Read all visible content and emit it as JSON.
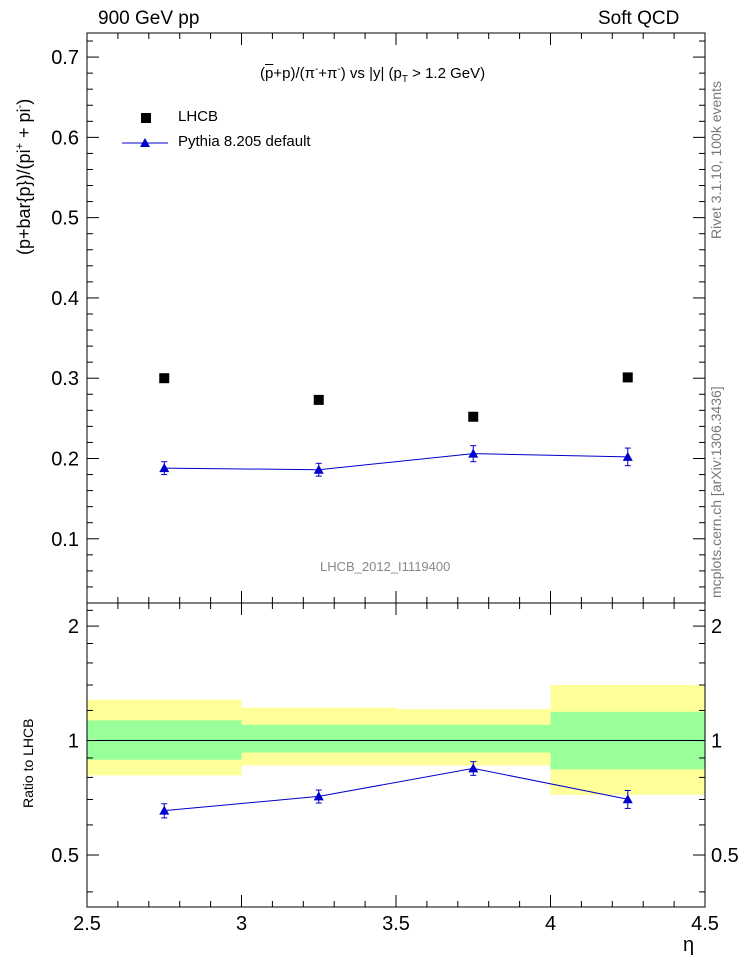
{
  "header": {
    "left": "900 GeV pp",
    "right": "Soft QCD"
  },
  "side_labels": {
    "rivet": "Rivet 3.1.10,  100k events",
    "mcplots": "mcplots.cern.ch [arXiv:1306.3436]"
  },
  "chart_data": {
    "type": "scatter",
    "title_parts": {
      "open": "(",
      "pbar": "p",
      "mid1": "+p)/(π",
      "sup1": "-",
      "mid2": "+π",
      "sup2": "-",
      "mid3": ") vs |y| (p",
      "sub": "T",
      "tail": " > 1.2 GeV)"
    },
    "ylabel_parts": {
      "a": "(p+bar{p})/(pi",
      "sup1": "+",
      "b": " + pi",
      "sup2": "-",
      "c": ")"
    },
    "ratio_ylabel": "Ratio to LHCB",
    "xlabel": "η",
    "analysis_id": "LHCB_2012_I1119400",
    "xlim": [
      2.5,
      4.5
    ],
    "ylim": [
      0.02,
      0.73
    ],
    "ratio_ylim": [
      0.365,
      2.3
    ],
    "x_ticks": [
      "2.5",
      "3",
      "3.5",
      "4",
      "4.5"
    ],
    "y_ticks": [
      "0.1",
      "0.2",
      "0.3",
      "0.4",
      "0.5",
      "0.6",
      "0.7"
    ],
    "ratio_ticks": [
      "0.5",
      "1",
      "2"
    ],
    "series": [
      {
        "name": "LHCB",
        "marker": "square",
        "color": "#000000",
        "x": [
          2.75,
          3.25,
          3.75,
          4.25
        ],
        "y": [
          0.3,
          0.273,
          0.252,
          0.301
        ]
      },
      {
        "name": "Pythia 8.205 default",
        "marker": "triangle",
        "color": "#0000cc",
        "x": [
          2.75,
          3.25,
          3.75,
          4.25
        ],
        "y": [
          0.188,
          0.186,
          0.206,
          0.202
        ],
        "yerr": [
          0.008,
          0.008,
          0.01,
          0.011
        ]
      }
    ],
    "ratio": {
      "bins": [
        [
          2.5,
          3.0
        ],
        [
          3.0,
          3.5
        ],
        [
          3.5,
          4.0
        ],
        [
          4.0,
          4.5
        ]
      ],
      "stat_band": [
        [
          0.89,
          1.13
        ],
        [
          0.93,
          1.1
        ],
        [
          0.93,
          1.1
        ],
        [
          0.84,
          1.19
        ]
      ],
      "total_band": [
        [
          0.81,
          1.28
        ],
        [
          0.86,
          1.22
        ],
        [
          0.86,
          1.21
        ],
        [
          0.72,
          1.4
        ]
      ],
      "values": [
        0.654,
        0.713,
        0.845,
        0.701
      ],
      "errors": [
        0.028,
        0.028,
        0.035,
        0.038
      ],
      "band_colors": {
        "stat": "#99ff99",
        "total": "#ffff99"
      }
    }
  }
}
